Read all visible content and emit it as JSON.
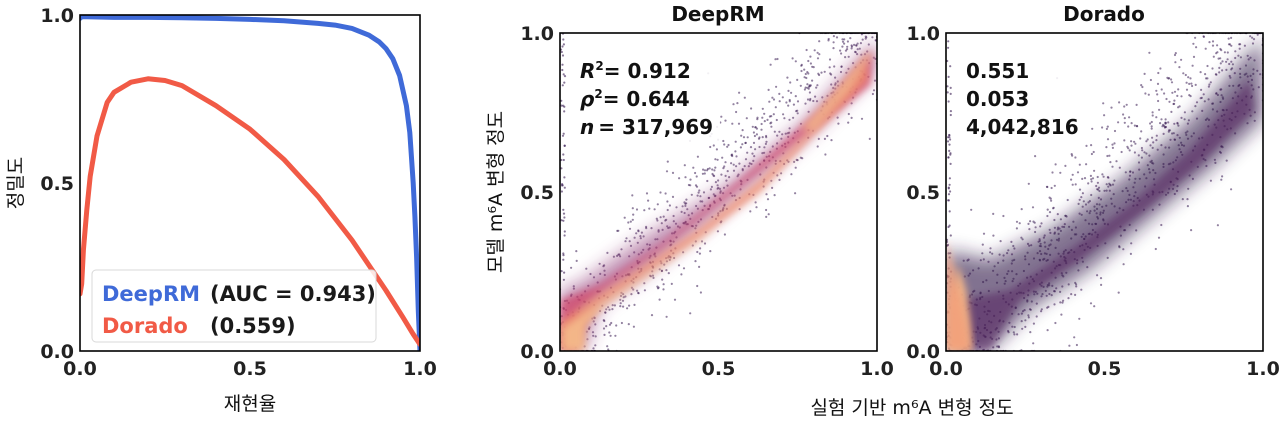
{
  "chart_data": [
    {
      "id": "pr",
      "type": "line",
      "title": "",
      "xlabel": "재현율",
      "ylabel": "정밀도",
      "xlim": [
        0,
        1
      ],
      "ylim": [
        0,
        1
      ],
      "xticks": [
        "0.0",
        "0.5",
        "1.0"
      ],
      "yticks": [
        "0.0",
        "0.5",
        "1.0"
      ],
      "legend": {
        "position": "lower-left",
        "entries": [
          {
            "name": "DeepRM",
            "stat": "(AUC = 0.943)",
            "color": "#3f6ad8"
          },
          {
            "name": "Dorado",
            "stat": "(0.559)",
            "color": "#f15a46"
          }
        ]
      },
      "series": [
        {
          "name": "DeepRM",
          "color": "#3f6ad8",
          "x": [
            0.0,
            0.005,
            0.02,
            0.1,
            0.2,
            0.3,
            0.4,
            0.5,
            0.6,
            0.7,
            0.75,
            0.8,
            0.85,
            0.88,
            0.9,
            0.92,
            0.94,
            0.96,
            0.97,
            0.98,
            0.985,
            0.99,
            0.995,
            1.0
          ],
          "y": [
            0.99,
            0.995,
            0.995,
            0.993,
            0.993,
            0.992,
            0.99,
            0.987,
            0.983,
            0.975,
            0.97,
            0.96,
            0.94,
            0.92,
            0.9,
            0.87,
            0.82,
            0.73,
            0.65,
            0.5,
            0.4,
            0.28,
            0.12,
            0.0
          ]
        },
        {
          "name": "Dorado",
          "color": "#f15a46",
          "x": [
            0.0,
            0.005,
            0.01,
            0.02,
            0.03,
            0.05,
            0.08,
            0.1,
            0.15,
            0.2,
            0.25,
            0.3,
            0.4,
            0.5,
            0.6,
            0.7,
            0.8,
            0.9,
            0.95,
            0.98,
            1.0
          ],
          "y": [
            0.17,
            0.2,
            0.3,
            0.42,
            0.52,
            0.64,
            0.74,
            0.77,
            0.8,
            0.81,
            0.805,
            0.79,
            0.73,
            0.66,
            0.57,
            0.46,
            0.33,
            0.18,
            0.1,
            0.05,
            0.02
          ]
        }
      ]
    },
    {
      "id": "scatter-deeprm",
      "type": "scatter",
      "title": "DeepRM",
      "xlim": [
        0,
        1
      ],
      "ylim": [
        0,
        1
      ],
      "xticks": [
        "0.0",
        "0.5",
        "1.0"
      ],
      "yticks": [
        "0.0",
        "0.5",
        "1.0"
      ],
      "stats": {
        "r2": "= 0.912",
        "rho2": "= 0.644",
        "n": "= 317,969"
      },
      "n_points": 317969,
      "fit_note": "density scatter along identity line"
    },
    {
      "id": "scatter-dorado",
      "type": "scatter",
      "title": "Dorado",
      "xlim": [
        0,
        1
      ],
      "ylim": [
        0,
        1
      ],
      "xticks": [
        "0.0",
        "0.5",
        "1.0"
      ],
      "yticks": [
        "0.0",
        "0.5",
        "1.0"
      ],
      "stats": {
        "r2": "0.551",
        "rho2": "0.053",
        "n": "4,042,816"
      },
      "n_points": 4042816,
      "fit_note": "density scatter along identity line"
    }
  ],
  "shared_labels": {
    "scatter_ylabel": "모델 m⁶A 변형 정도",
    "scatter_xlabel": "실험 기반 m⁶A 변형 정도"
  },
  "stat_labels": {
    "r2": "R",
    "rho2": "ρ",
    "n": "n",
    "sup": "2"
  },
  "colors": {
    "deeprm": "#3f6ad8",
    "dorado": "#f15a46",
    "density_low": "#3b1e54",
    "density_mid": "#d2466b",
    "density_high": "#f4b98a"
  }
}
